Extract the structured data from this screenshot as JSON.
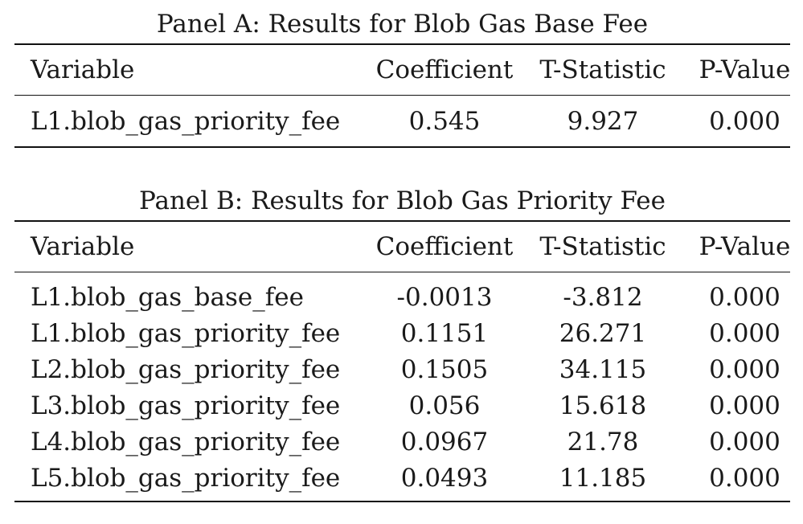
{
  "panel_a": {
    "title": "Panel A: Results for Blob Gas Base Fee",
    "headers": [
      "Variable",
      "Coefficient",
      "T-Statistic",
      "P-Value"
    ],
    "rows": [
      [
        "L1.blob_gas_priority_fee",
        "0.545",
        "9.927",
        "0.000"
      ]
    ]
  },
  "panel_b": {
    "title": "Panel B: Results for Blob Gas Priority Fee",
    "headers": [
      "Variable",
      "Coefficient",
      "T-Statistic",
      "P-Value"
    ],
    "rows": [
      [
        "L1.blob_gas_base_fee",
        "-0.0013",
        "-3.812",
        "0.000"
      ],
      [
        "L1.blob_gas_priority_fee",
        "0.1151",
        "26.271",
        "0.000"
      ],
      [
        "L2.blob_gas_priority_fee",
        "0.1505",
        "34.115",
        "0.000"
      ],
      [
        "L3.blob_gas_priority_fee",
        "0.056",
        "15.618",
        "0.000"
      ],
      [
        "L4.blob_gas_priority_fee",
        "0.0967",
        "21.78",
        "0.000"
      ],
      [
        "L5.blob_gas_priority_fee",
        "0.0493",
        "11.185",
        "0.000"
      ]
    ]
  }
}
